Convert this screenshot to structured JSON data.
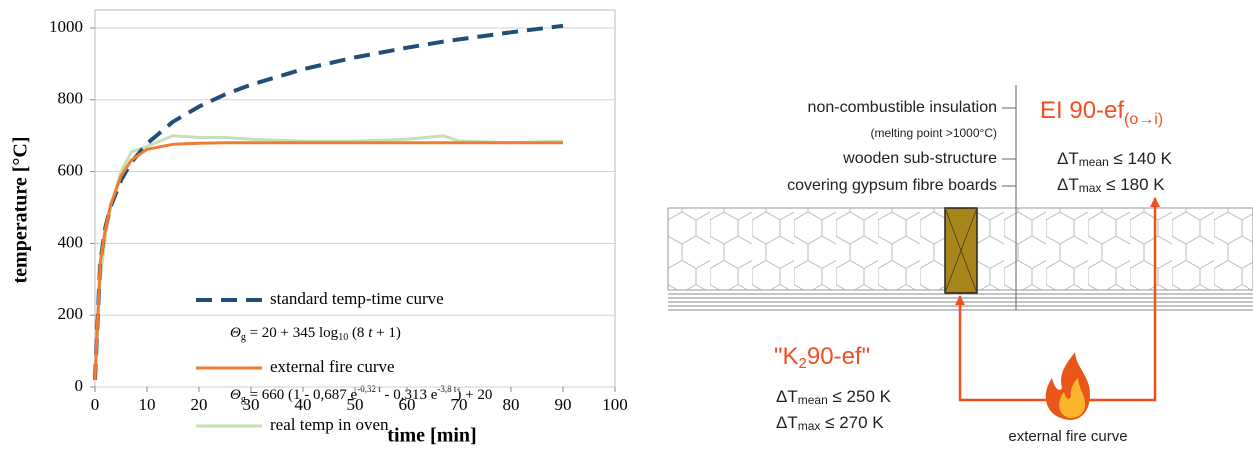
{
  "chart_data": {
    "type": "line",
    "xlabel": "time [min]",
    "ylabel": "temperature [°C]",
    "x": [
      0,
      1,
      2,
      3,
      5,
      7,
      10,
      15,
      20,
      25,
      30,
      40,
      50,
      60,
      67,
      70,
      80,
      90
    ],
    "series": [
      {
        "name": "standard temp-time curve",
        "color": "#1f4e79",
        "style": "dashed",
        "formula": [
          "Θ",
          "g",
          " = 20 + 345 log",
          "10",
          " (8 ",
          "t",
          " + 1)"
        ],
        "values": [
          20,
          349,
          445,
          502,
          576,
          626,
          678,
          739,
          781,
          815,
          842,
          885,
          918,
          945,
          962,
          968,
          988,
          1006
        ]
      },
      {
        "name": "external fire curve",
        "color": "#ed7d31",
        "style": "solid",
        "formula": [
          "Θ",
          "g",
          " = 660 (1 - 0,687 e",
          "-0,32 t",
          " - 0,313 e",
          "-3,8 t",
          ") + 20"
        ],
        "values": [
          20,
          346,
          441,
          506,
          588,
          632,
          662,
          676,
          679,
          680,
          680,
          680,
          680,
          680,
          680,
          680,
          680,
          680
        ]
      },
      {
        "name": "real temp in oven",
        "color": "#c5e0b4",
        "style": "solid",
        "values": [
          20,
          300,
          420,
          500,
          600,
          655,
          670,
          700,
          695,
          695,
          690,
          685,
          685,
          690,
          700,
          685,
          680,
          685
        ]
      }
    ],
    "xlim": [
      0,
      100
    ],
    "xticks": [
      0,
      10,
      20,
      30,
      40,
      50,
      60,
      70,
      80,
      90,
      100
    ],
    "ylim": [
      0,
      1050
    ],
    "yticks": [
      0,
      200,
      400,
      600,
      800,
      1000
    ],
    "grid": true
  },
  "diagram": {
    "labels": [
      "non-combustible insulation",
      "(melting point >1000°C)",
      "wooden sub-structure",
      "covering gypsum fibre boards"
    ],
    "inside": {
      "title": "EI 90-ef",
      "title_sub": "(o→i)",
      "lines": [
        [
          "ΔT",
          "mean",
          " ≤ 140 K"
        ],
        [
          "ΔT",
          "max",
          " ≤ 180 K"
        ]
      ]
    },
    "outside": {
      "title": [
        "\"K",
        "2",
        "90-ef\""
      ],
      "lines": [
        [
          "ΔT",
          "mean",
          " ≤ 250 K"
        ],
        [
          "ΔT",
          "max",
          " ≤ 270 K"
        ]
      ]
    },
    "fire": "external fire curve"
  }
}
